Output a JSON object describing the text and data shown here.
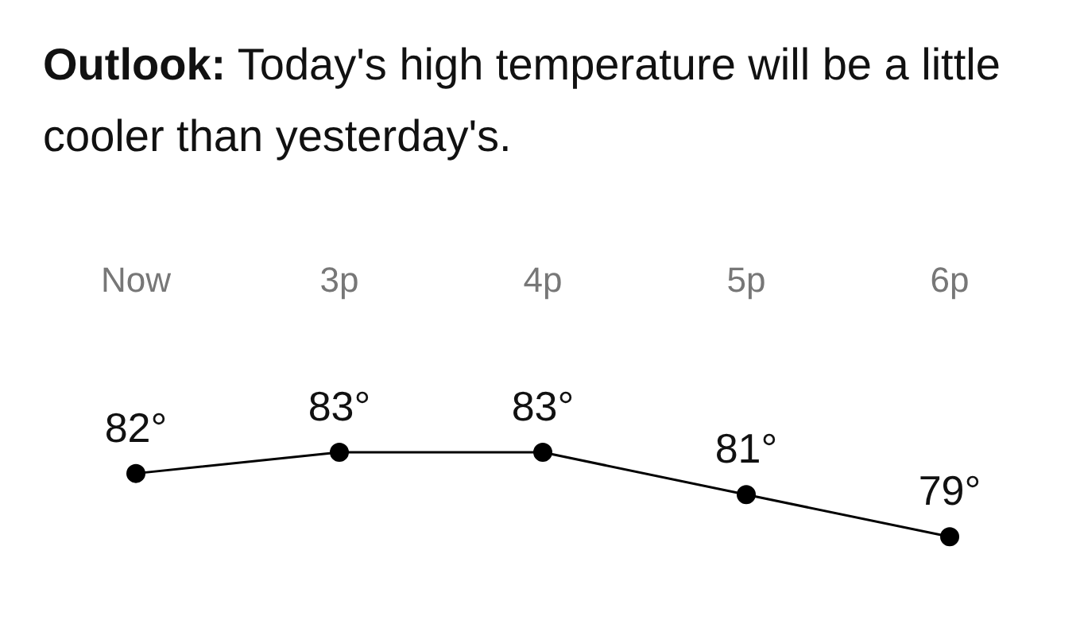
{
  "chart_data": {
    "type": "line",
    "title": "Outlook:",
    "subtitle": "Today's high temperature will be a little cooler than yesterday's.",
    "categories": [
      "Now",
      "3p",
      "4p",
      "5p",
      "6p"
    ],
    "values": [
      82,
      83,
      83,
      81,
      79
    ],
    "color": "#000000",
    "value_labels": [
      "82°",
      "83°",
      "83°",
      "81°",
      "79°"
    ],
    "marker": "circle",
    "line_style": "solid",
    "grid": false
  }
}
